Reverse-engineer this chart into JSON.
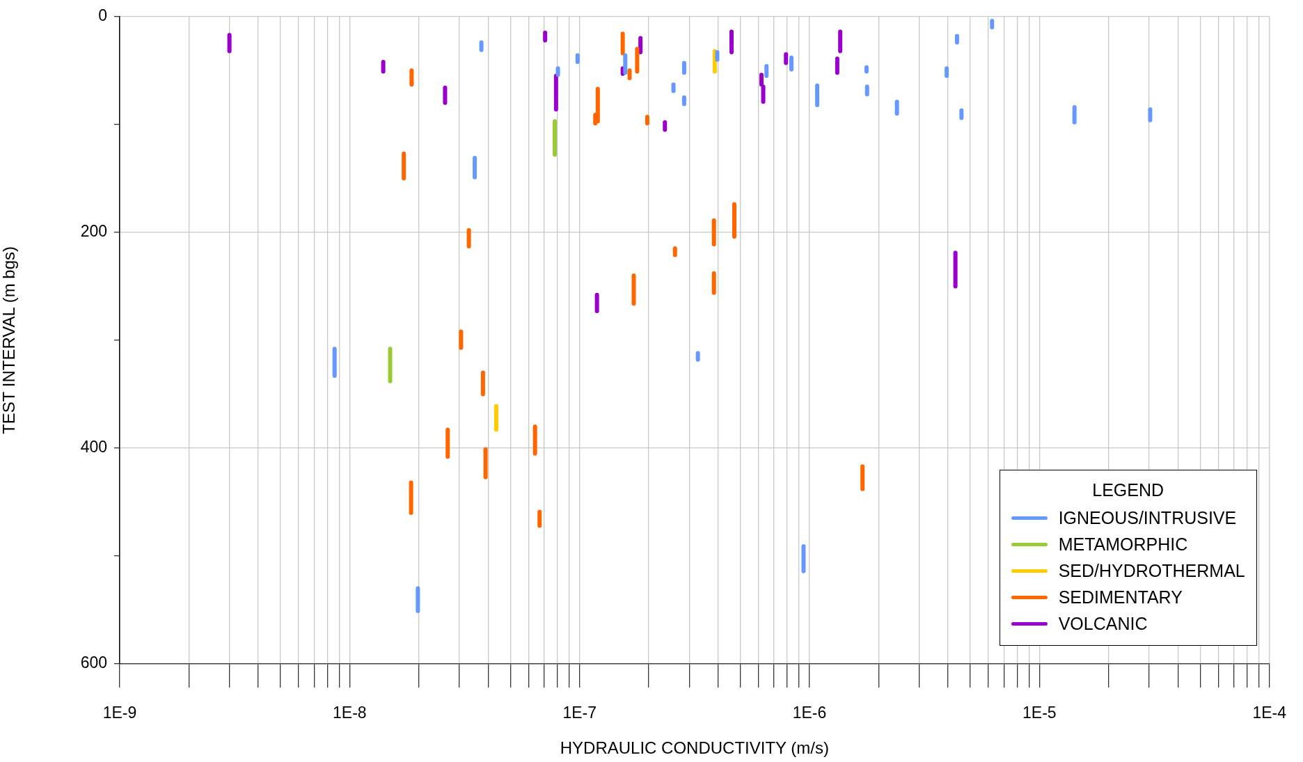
{
  "chart_data": {
    "type": "line",
    "xlabel": "HYDRAULIC CONDUCTIVITY (m/s)",
    "ylabel": "TEST INTERVAL (m bgs)",
    "legend_title": "LEGEND",
    "legend": "bottom right",
    "grid": true,
    "log": "x",
    "marker": "none",
    "line_style": "solid",
    "xlim": [
      1e-09,
      0.0001
    ],
    "xticks": [
      {
        "value": 1e-09,
        "label": "1E-9"
      },
      {
        "value": 2e-09,
        "label": null
      },
      {
        "value": 3e-09,
        "label": null
      },
      {
        "value": 4e-09,
        "label": null
      },
      {
        "value": 5e-09,
        "label": null
      },
      {
        "value": 6e-09,
        "label": null
      },
      {
        "value": 7e-09,
        "label": null
      },
      {
        "value": 8e-09,
        "label": null
      },
      {
        "value": 9e-09,
        "label": null
      },
      {
        "value": 1e-08,
        "label": "1E-8"
      },
      {
        "value": 2e-08,
        "label": null
      },
      {
        "value": 3e-08,
        "label": null
      },
      {
        "value": 4e-08,
        "label": null
      },
      {
        "value": 5e-08,
        "label": null
      },
      {
        "value": 6e-08,
        "label": null
      },
      {
        "value": 7e-08,
        "label": null
      },
      {
        "value": 8e-08,
        "label": null
      },
      {
        "value": 9e-08,
        "label": null
      },
      {
        "value": 1e-07,
        "label": "1E-7"
      },
      {
        "value": 2e-07,
        "label": null
      },
      {
        "value": 3e-07,
        "label": null
      },
      {
        "value": 4e-07,
        "label": null
      },
      {
        "value": 5e-07,
        "label": null
      },
      {
        "value": 6e-07,
        "label": null
      },
      {
        "value": 7e-07,
        "label": null
      },
      {
        "value": 8e-07,
        "label": null
      },
      {
        "value": 9e-07,
        "label": null
      },
      {
        "value": 1e-06,
        "label": "1E-6"
      },
      {
        "value": 2e-06,
        "label": null
      },
      {
        "value": 3e-06,
        "label": null
      },
      {
        "value": 4e-06,
        "label": null
      },
      {
        "value": 5e-06,
        "label": null
      },
      {
        "value": 6e-06,
        "label": null
      },
      {
        "value": 7e-06,
        "label": null
      },
      {
        "value": 8e-06,
        "label": null
      },
      {
        "value": 9e-06,
        "label": null
      },
      {
        "value": 1e-05,
        "label": "1E-5"
      },
      {
        "value": 2e-05,
        "label": null
      },
      {
        "value": 3e-05,
        "label": null
      },
      {
        "value": 4e-05,
        "label": null
      },
      {
        "value": 5e-05,
        "label": null
      },
      {
        "value": 6e-05,
        "label": null
      },
      {
        "value": 7e-05,
        "label": null
      },
      {
        "value": 8e-05,
        "label": null
      },
      {
        "value": 9e-05,
        "label": null
      },
      {
        "value": 0.0001,
        "label": "1E-4"
      }
    ],
    "ylim": [
      600,
      0
    ],
    "yticks": [
      0,
      {
        "value": 100,
        "label": null
      },
      200,
      {
        "value": 300,
        "label": null
      },
      400,
      {
        "value": 500,
        "label": null
      },
      600
    ],
    "series": [
      {
        "name": "IGNEOUS/INTRUSIVE",
        "color": "#6699ff",
        "x": [
          3.74e-08,
          3.74e-08,
          null,
          8.05e-08,
          8.05e-08,
          null,
          9.8e-08,
          9.8e-08,
          null,
          1.58e-07,
          1.58e-07,
          null,
          2.85e-07,
          2.85e-07,
          null,
          2.56e-07,
          2.56e-07,
          null,
          2.85e-07,
          2.85e-07,
          null,
          3.5e-08,
          3.5e-08,
          null,
          3.97e-07,
          3.97e-07,
          null,
          6.5e-07,
          6.5e-07,
          null,
          8.34e-07,
          8.34e-07,
          null,
          1.08e-06,
          1.08e-06,
          null,
          1.77e-06,
          1.77e-06,
          null,
          1.78e-06,
          1.78e-06,
          null,
          2.4e-06,
          2.4e-06,
          null,
          3.95e-06,
          3.95e-06,
          null,
          4.38e-06,
          4.38e-06,
          null,
          4.58e-06,
          4.58e-06,
          null,
          6.22e-06,
          6.22e-06,
          null,
          1.42e-05,
          1.42e-05,
          null,
          3.03e-05,
          3.03e-05,
          null,
          8.6e-09,
          8.6e-09,
          null,
          3.27e-07,
          3.27e-07,
          null,
          9.42e-07,
          9.42e-07,
          null,
          1.98e-08,
          1.98e-08
        ],
        "values": [
          24,
          31,
          null,
          48,
          54,
          null,
          36,
          42,
          null,
          36,
          52,
          null,
          43,
          52,
          null,
          63,
          69,
          null,
          75,
          81,
          null,
          131,
          149,
          null,
          33,
          40,
          null,
          46,
          55,
          null,
          38,
          49,
          null,
          64,
          82,
          null,
          47,
          51,
          null,
          65,
          72,
          null,
          79,
          90,
          null,
          48,
          55,
          null,
          18,
          24,
          null,
          87,
          94,
          null,
          4,
          10,
          null,
          84,
          98,
          null,
          86,
          96,
          null,
          308,
          333,
          null,
          312,
          318,
          null,
          491,
          514,
          null,
          530,
          551
        ]
      },
      {
        "name": "METAMORPHIC",
        "color": "#99cc33",
        "x": [
          7.8e-08,
          7.8e-08,
          null,
          1.5e-08,
          1.5e-08
        ],
        "values": [
          97,
          128,
          null,
          308,
          338
        ]
      },
      {
        "name": "SED/HYDROTHERMAL",
        "color": "#ffcc00",
        "x": [
          3.87e-07,
          3.87e-07,
          null,
          4.34e-08,
          4.34e-08
        ],
        "values": [
          32,
          51,
          null,
          361,
          383
        ]
      },
      {
        "name": "SEDIMENTARY",
        "color": "#ff6600",
        "x": [
          1.86e-08,
          1.86e-08,
          null,
          1.54e-07,
          1.54e-07,
          null,
          1.65e-07,
          1.65e-07,
          null,
          1.78e-07,
          1.78e-07,
          null,
          1.2e-07,
          1.2e-07,
          null,
          1.17e-07,
          1.17e-07,
          null,
          1.97e-07,
          1.97e-07,
          null,
          1.72e-08,
          1.72e-08,
          null,
          3.3e-08,
          3.3e-08,
          null,
          2.6e-07,
          2.6e-07,
          null,
          1.72e-07,
          1.72e-07,
          null,
          3.05e-08,
          3.05e-08,
          null,
          3.8e-08,
          3.8e-08,
          null,
          2.67e-08,
          2.67e-08,
          null,
          6.4e-08,
          6.4e-08,
          null,
          3.9e-08,
          3.9e-08,
          null,
          1.85e-08,
          1.85e-08,
          null,
          6.7e-08,
          6.7e-08,
          null,
          3.84e-07,
          3.84e-07,
          null,
          4.71e-07,
          4.71e-07,
          null,
          3.84e-07,
          3.84e-07,
          null,
          1.7e-06,
          1.7e-06
        ],
        "values": [
          50,
          63,
          null,
          16,
          34,
          null,
          50,
          57,
          null,
          30,
          51,
          null,
          67,
          97,
          null,
          91,
          99,
          null,
          93,
          99,
          null,
          127,
          150,
          null,
          198,
          213,
          null,
          215,
          221,
          null,
          240,
          266,
          null,
          292,
          307,
          null,
          330,
          350,
          null,
          383,
          408,
          null,
          380,
          405,
          null,
          401,
          427,
          null,
          432,
          460,
          null,
          459,
          472,
          null,
          189,
          211,
          null,
          174,
          204,
          null,
          238,
          256,
          null,
          417,
          438
        ]
      },
      {
        "name": "VOLCANIC",
        "color": "#9900cc",
        "x": [
          3e-09,
          3e-09,
          null,
          1.4e-08,
          1.4e-08,
          null,
          2.6e-08,
          2.6e-08,
          null,
          7.08e-08,
          7.08e-08,
          null,
          7.9e-08,
          7.9e-08,
          null,
          1.54e-07,
          1.54e-07,
          null,
          1.84e-07,
          1.84e-07,
          null,
          2.35e-07,
          2.35e-07,
          null,
          1.19e-07,
          1.19e-07,
          null,
          4.58e-07,
          4.58e-07,
          null,
          6.18e-07,
          6.18e-07,
          null,
          6.29e-07,
          6.29e-07,
          null,
          7.9e-07,
          7.9e-07,
          null,
          1.32e-06,
          1.32e-06,
          null,
          1.36e-06,
          1.36e-06,
          null,
          4.31e-06,
          4.31e-06
        ],
        "values": [
          17,
          32,
          null,
          42,
          51,
          null,
          66,
          80,
          null,
          15,
          22,
          null,
          55,
          86,
          null,
          48,
          53,
          null,
          20,
          33,
          null,
          98,
          105,
          null,
          258,
          273,
          null,
          14,
          33,
          null,
          54,
          63,
          null,
          65,
          79,
          null,
          35,
          43,
          null,
          39,
          52,
          null,
          14,
          32,
          null,
          219,
          250
        ]
      }
    ]
  }
}
